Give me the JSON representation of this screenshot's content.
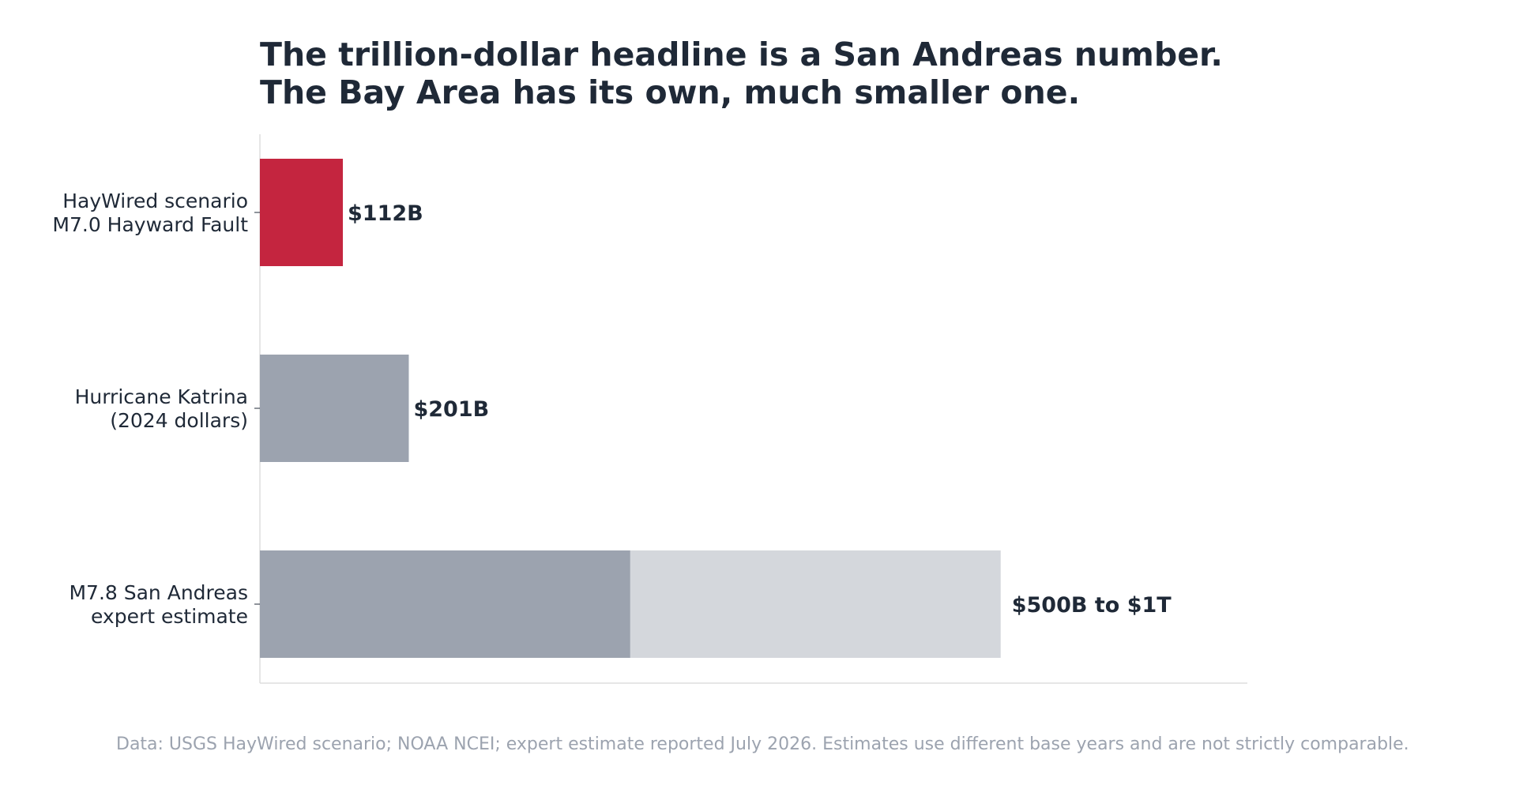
{
  "colors": {
    "text": "#1f2937",
    "highlight": "#c4253f",
    "neutral": "#9ca3af",
    "range": "#d4d7dc",
    "axis": "#dddddd",
    "footnote": "#9ca3af",
    "background": "#ffffff"
  },
  "chart_data": {
    "type": "bar",
    "orientation": "horizontal",
    "title_lines": [
      "The trillion-dollar headline is a San Andreas number.",
      "The Bay Area has its own, much smaller one."
    ],
    "categories": [
      [
        "HayWired scenario",
        "M7.0 Hayward Fault"
      ],
      [
        "Hurricane Katrina",
        "(2024 dollars)"
      ],
      [
        "M7.8 San Andreas",
        "expert estimate"
      ]
    ],
    "bars": [
      {
        "low": 112,
        "high": 112,
        "label": "$112B",
        "highlight": true
      },
      {
        "low": 201,
        "high": 201,
        "label": "$201B",
        "highlight": false
      },
      {
        "low": 500,
        "high": 1000,
        "label": "$500B to $1T",
        "highlight": false
      }
    ],
    "unit": "billion USD",
    "xlim": [
      0,
      1333
    ],
    "grid": false,
    "legend": "none",
    "footnote": "Data: USGS HayWired scenario; NOAA NCEI; expert estimate reported July 2026. Estimates use different base years and are not strictly comparable."
  }
}
